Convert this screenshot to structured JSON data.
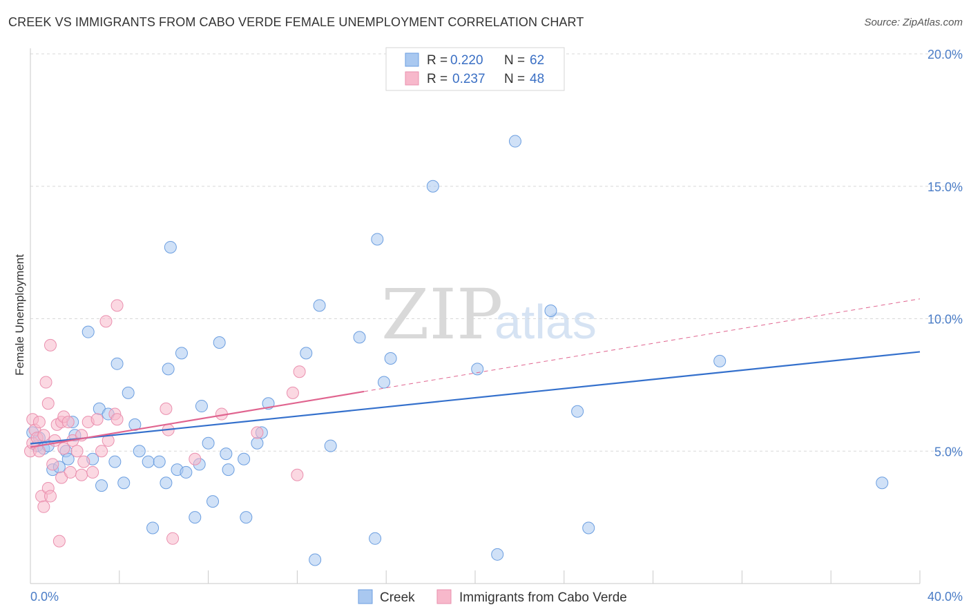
{
  "title": "CREEK VS IMMIGRANTS FROM CABO VERDE FEMALE UNEMPLOYMENT CORRELATION CHART",
  "source": "Source: ZipAtlas.com",
  "watermark": {
    "zip": "ZIP",
    "atlas": "atlas"
  },
  "legend": {
    "rows": [
      {
        "r_label": "R =",
        "r_value": "0.220",
        "n_label": "N =",
        "n_value": "62"
      },
      {
        "r_label": "R =",
        "r_value": "0.237",
        "n_label": "N =",
        "n_value": "48"
      }
    ]
  },
  "bottom_legend": {
    "series1": "Creek",
    "series2": "Immigrants from Cabo Verde"
  },
  "colors": {
    "creek_fill": "#a9c8f0",
    "creek_stroke": "#6b9ee0",
    "creek_line": "#3470cc",
    "cabo_fill": "#f7b8cb",
    "cabo_stroke": "#ea8fae",
    "cabo_line": "#e0648f",
    "tick_text": "#4a7cc6",
    "grid": "#d8d8d8"
  },
  "chart_data": {
    "type": "scatter",
    "title": "CREEK VS IMMIGRANTS FROM CABO VERDE FEMALE UNEMPLOYMENT CORRELATION CHART",
    "xlabel": "",
    "ylabel": "Female Unemployment",
    "xlim": [
      0,
      40
    ],
    "ylim": [
      0,
      20
    ],
    "x_tick_labels": {
      "left": "0.0%",
      "right": "40.0%"
    },
    "y_ticks": [
      {
        "value": 5,
        "label": "5.0%"
      },
      {
        "value": 10,
        "label": "10.0%"
      },
      {
        "value": 15,
        "label": "15.0%"
      },
      {
        "value": 20,
        "label": "20.0%"
      }
    ],
    "series": [
      {
        "name": "Creek",
        "R": 0.22,
        "N": 62,
        "trend": {
          "x": [
            0,
            40
          ],
          "y": [
            5.28,
            8.75
          ]
        },
        "points": [
          [
            0.1,
            5.7
          ],
          [
            0.3,
            5.2
          ],
          [
            0.4,
            5.5
          ],
          [
            0.6,
            5.1
          ],
          [
            0.8,
            5.2
          ],
          [
            1.0,
            4.3
          ],
          [
            1.3,
            4.4
          ],
          [
            1.6,
            5.0
          ],
          [
            1.7,
            4.7
          ],
          [
            1.9,
            6.1
          ],
          [
            2.0,
            5.6
          ],
          [
            2.6,
            9.5
          ],
          [
            2.8,
            4.7
          ],
          [
            3.1,
            6.6
          ],
          [
            3.2,
            3.7
          ],
          [
            3.5,
            6.4
          ],
          [
            3.8,
            4.6
          ],
          [
            3.9,
            8.3
          ],
          [
            4.2,
            3.8
          ],
          [
            4.4,
            7.2
          ],
          [
            4.7,
            6.0
          ],
          [
            4.9,
            5.0
          ],
          [
            5.3,
            4.6
          ],
          [
            5.5,
            2.1
          ],
          [
            5.8,
            4.6
          ],
          [
            6.1,
            3.8
          ],
          [
            6.2,
            8.1
          ],
          [
            6.3,
            12.7
          ],
          [
            6.6,
            4.3
          ],
          [
            6.8,
            8.7
          ],
          [
            7.0,
            4.2
          ],
          [
            7.4,
            2.5
          ],
          [
            7.6,
            4.5
          ],
          [
            7.7,
            6.7
          ],
          [
            8.0,
            5.3
          ],
          [
            8.2,
            3.1
          ],
          [
            8.5,
            9.1
          ],
          [
            8.8,
            4.9
          ],
          [
            8.9,
            4.3
          ],
          [
            9.6,
            4.7
          ],
          [
            9.7,
            2.5
          ],
          [
            10.2,
            5.3
          ],
          [
            10.4,
            5.7
          ],
          [
            10.7,
            6.8
          ],
          [
            12.4,
            8.7
          ],
          [
            12.8,
            0.9
          ],
          [
            13.0,
            10.5
          ],
          [
            13.5,
            5.2
          ],
          [
            14.8,
            9.3
          ],
          [
            15.5,
            1.7
          ],
          [
            15.6,
            13.0
          ],
          [
            15.9,
            7.6
          ],
          [
            16.2,
            8.5
          ],
          [
            18.1,
            15.0
          ],
          [
            20.1,
            8.1
          ],
          [
            21.0,
            1.1
          ],
          [
            21.8,
            16.7
          ],
          [
            23.4,
            10.3
          ],
          [
            24.6,
            6.5
          ],
          [
            25.1,
            2.1
          ],
          [
            31.0,
            8.4
          ],
          [
            38.3,
            3.8
          ]
        ]
      },
      {
        "name": "Immigrants from Cabo Verde",
        "R": 0.237,
        "N": 48,
        "trend_solid": {
          "x": [
            0,
            15
          ],
          "y": [
            5.15,
            7.25
          ]
        },
        "trend_dashed": {
          "x": [
            15,
            40
          ],
          "y": [
            7.25,
            10.75
          ]
        },
        "points": [
          [
            0.0,
            5.0
          ],
          [
            0.1,
            6.2
          ],
          [
            0.1,
            5.3
          ],
          [
            0.2,
            5.8
          ],
          [
            0.3,
            5.5
          ],
          [
            0.4,
            6.1
          ],
          [
            0.4,
            5.0
          ],
          [
            0.5,
            3.3
          ],
          [
            0.6,
            2.9
          ],
          [
            0.6,
            5.6
          ],
          [
            0.7,
            7.6
          ],
          [
            0.8,
            3.6
          ],
          [
            0.8,
            6.8
          ],
          [
            0.9,
            3.3
          ],
          [
            0.9,
            9.0
          ],
          [
            1.0,
            4.5
          ],
          [
            1.1,
            5.4
          ],
          [
            1.2,
            6.0
          ],
          [
            1.3,
            1.6
          ],
          [
            1.4,
            6.1
          ],
          [
            1.4,
            4.0
          ],
          [
            1.5,
            5.1
          ],
          [
            1.5,
            6.3
          ],
          [
            1.7,
            6.1
          ],
          [
            1.8,
            4.2
          ],
          [
            1.9,
            5.4
          ],
          [
            2.1,
            5.0
          ],
          [
            2.3,
            4.1
          ],
          [
            2.3,
            5.6
          ],
          [
            2.4,
            4.6
          ],
          [
            2.6,
            6.1
          ],
          [
            2.8,
            4.2
          ],
          [
            3.0,
            6.2
          ],
          [
            3.2,
            5.0
          ],
          [
            3.4,
            9.9
          ],
          [
            3.5,
            5.4
          ],
          [
            3.8,
            6.4
          ],
          [
            3.9,
            6.2
          ],
          [
            3.9,
            10.5
          ],
          [
            6.1,
            6.6
          ],
          [
            6.2,
            5.8
          ],
          [
            6.4,
            1.7
          ],
          [
            7.4,
            4.7
          ],
          [
            8.6,
            6.4
          ],
          [
            10.2,
            5.7
          ],
          [
            11.8,
            7.2
          ],
          [
            12.0,
            4.1
          ],
          [
            12.1,
            8.0
          ]
        ]
      }
    ]
  }
}
